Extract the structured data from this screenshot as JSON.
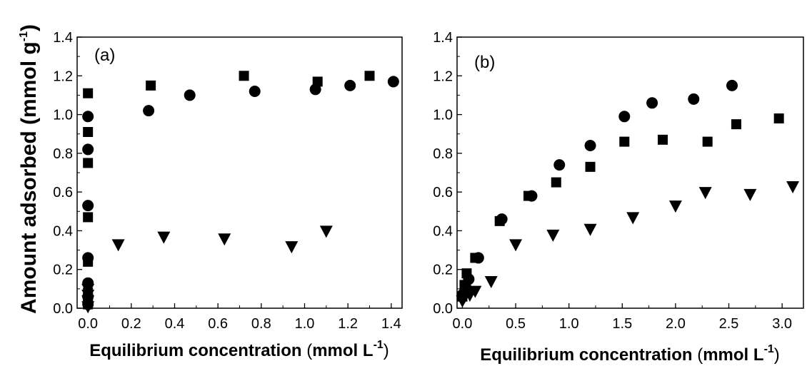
{
  "ylabel": {
    "main": "Amount adsorbed (mmol g",
    "sup": "-1",
    "close": ")"
  },
  "colors": {
    "marker": "#000000",
    "axis": "#000000",
    "background": "#ffffff"
  },
  "chart_data": [
    {
      "type": "scatter",
      "panel_label": "(a)",
      "xlabel": {
        "main": "Equilibrium concentration ",
        "paren": "(",
        "unit": "mmol L",
        "sup": "-1",
        "close": ")"
      },
      "xlim": [
        -0.05,
        1.45
      ],
      "ylim": [
        0,
        1.4
      ],
      "xticks": [
        "0.0",
        "0.2",
        "0.4",
        "0.6",
        "0.8",
        "1.0",
        "1.2",
        "1.4"
      ],
      "yticks": [
        "0.0",
        "0.2",
        "0.4",
        "0.6",
        "0.8",
        "1.0",
        "1.2",
        "1.4"
      ],
      "series": [
        {
          "marker": "square",
          "x": [
            0.0,
            0.0,
            0.0,
            0.0,
            0.0,
            0.0,
            0.0,
            0.0,
            0.29,
            0.72,
            1.06,
            1.3
          ],
          "y": [
            0.04,
            0.08,
            0.24,
            0.47,
            0.75,
            0.91,
            1.11,
            0.02,
            1.15,
            1.2,
            1.17,
            1.2
          ]
        },
        {
          "marker": "circle",
          "x": [
            0.0,
            0.0,
            0.0,
            0.0,
            0.0,
            0.0,
            0.0,
            0.28,
            0.47,
            0.77,
            1.05,
            1.21,
            1.41
          ],
          "y": [
            0.02,
            0.06,
            0.13,
            0.26,
            0.53,
            0.82,
            0.99,
            1.02,
            1.1,
            1.12,
            1.13,
            1.15,
            1.17
          ]
        },
        {
          "marker": "triangle-down",
          "x": [
            0.0,
            0.0,
            0.0,
            0.0,
            0.14,
            0.35,
            0.63,
            0.94,
            1.1
          ],
          "y": [
            0.01,
            0.04,
            0.07,
            0.1,
            0.33,
            0.37,
            0.36,
            0.32,
            0.4
          ]
        }
      ]
    },
    {
      "type": "scatter",
      "panel_label": "(b)",
      "xlabel": {
        "main": "Equilibrium concentration ",
        "paren": "(",
        "unit": "mmol L",
        "sup": "-1",
        "close": ")"
      },
      "xlim": [
        -0.05,
        3.2
      ],
      "ylim": [
        0,
        1.4
      ],
      "xticks": [
        "0.0",
        "0.5",
        "1.0",
        "1.5",
        "2.0",
        "2.5",
        "3.0"
      ],
      "yticks": [
        "0.0",
        "0.2",
        "0.4",
        "0.6",
        "0.8",
        "1.0",
        "1.2",
        "1.4"
      ],
      "series": [
        {
          "marker": "square",
          "x": [
            0.0,
            0.02,
            0.04,
            0.12,
            0.35,
            0.62,
            0.88,
            1.2,
            1.52,
            1.88,
            2.3,
            2.57,
            2.97
          ],
          "y": [
            0.06,
            0.12,
            0.18,
            0.26,
            0.45,
            0.58,
            0.65,
            0.73,
            0.86,
            0.87,
            0.86,
            0.95,
            0.98
          ]
        },
        {
          "marker": "circle",
          "x": [
            0.0,
            0.03,
            0.06,
            0.15,
            0.37,
            0.65,
            0.91,
            1.2,
            1.52,
            1.78,
            2.17,
            2.53
          ],
          "y": [
            0.07,
            0.11,
            0.15,
            0.26,
            0.46,
            0.58,
            0.74,
            0.84,
            0.99,
            1.06,
            1.08,
            1.15
          ]
        },
        {
          "marker": "triangle-down",
          "x": [
            0.0,
            0.02,
            0.04,
            0.07,
            0.12,
            0.27,
            0.5,
            0.85,
            1.2,
            1.6,
            2.0,
            2.28,
            2.7,
            3.1
          ],
          "y": [
            0.04,
            0.06,
            0.08,
            0.07,
            0.09,
            0.14,
            0.33,
            0.38,
            0.41,
            0.47,
            0.53,
            0.6,
            0.59,
            0.63
          ]
        }
      ]
    }
  ]
}
